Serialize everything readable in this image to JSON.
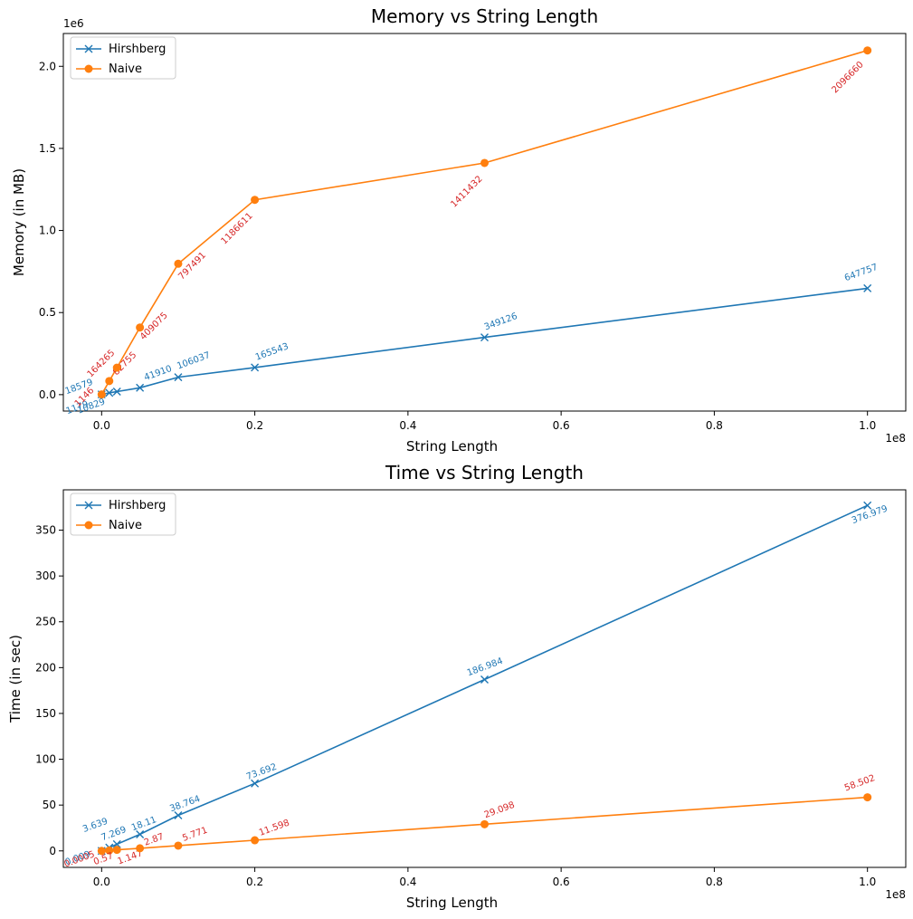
{
  "colors": {
    "hirshberg": "#1f77b4",
    "naive": "#ff7f0e",
    "annot_naive": "#d62728",
    "axis": "#000000",
    "legend_border": "#cccccc"
  },
  "chart_data": [
    {
      "type": "line",
      "title": "Memory vs String Length",
      "xlabel": "String Length",
      "ylabel": "Memory (in MB)",
      "x_offset_label": "1e8",
      "y_offset_label": "1e6",
      "xlim": [
        -5000000,
        105000000
      ],
      "ylim": [
        -100000,
        2200000
      ],
      "x_scale": 100000000,
      "y_scale": 1000000,
      "xticks": [
        0,
        20000000,
        40000000,
        60000000,
        80000000,
        100000000
      ],
      "xtick_labels": [
        "0.0",
        "0.2",
        "0.4",
        "0.6",
        "0.8",
        "1.0"
      ],
      "yticks": [
        0,
        500000,
        1000000,
        1500000,
        2000000
      ],
      "ytick_labels": [
        "0.0",
        "0.5",
        "1.0",
        "1.5",
        "2.0"
      ],
      "legend_position": "upper-left",
      "grid": false,
      "series": [
        {
          "name": "Hirshberg",
          "marker": "x",
          "x": [
            1000,
            1000000,
            2000000,
            5000000,
            10000000,
            20000000,
            50000000,
            100000000
          ],
          "values": [
            1179,
            10829,
            18579,
            41910,
            106037,
            165543,
            349126,
            647757
          ],
          "labels": [
            "1179",
            "10829",
            "18579",
            "41910",
            "106037",
            "165543",
            "349126",
            "647757"
          ]
        },
        {
          "name": "Naive",
          "marker": "o",
          "x": [
            1000,
            1000000,
            2000000,
            5000000,
            10000000,
            20000000,
            50000000,
            100000000
          ],
          "values": [
            1146,
            82755,
            164265,
            409075,
            797491,
            1186611,
            1411432,
            2096660
          ],
          "labels": [
            "1146",
            "82755",
            "164265",
            "409075",
            "797491",
            "1186611",
            "1411432",
            "2096660"
          ]
        }
      ]
    },
    {
      "type": "line",
      "title": "Time vs String Length",
      "xlabel": "String Length",
      "ylabel": "Time (in sec)",
      "x_offset_label": "1e8",
      "xlim": [
        -5000000,
        105000000
      ],
      "ylim": [
        -18,
        394
      ],
      "x_scale": 100000000,
      "xticks": [
        0,
        20000000,
        40000000,
        60000000,
        80000000,
        100000000
      ],
      "xtick_labels": [
        "0.0",
        "0.2",
        "0.4",
        "0.6",
        "0.8",
        "1.0"
      ],
      "yticks": [
        0,
        50,
        100,
        150,
        200,
        250,
        300,
        350
      ],
      "ytick_labels": [
        "0",
        "50",
        "100",
        "150",
        "200",
        "250",
        "300",
        "350"
      ],
      "legend_position": "upper-left",
      "grid": false,
      "series": [
        {
          "name": "Hirshberg",
          "marker": "x",
          "x": [
            1000,
            1000000,
            2000000,
            5000000,
            10000000,
            20000000,
            50000000,
            100000000
          ],
          "values": [
            0.009,
            3.639,
            7.269,
            18.11,
            38.764,
            73.692,
            186.984,
            376.979
          ],
          "labels": [
            "0.009",
            "3.639",
            "7.269",
            "18.11",
            "38.764",
            "73.692",
            "186.984",
            "376.979"
          ]
        },
        {
          "name": "Naive",
          "marker": "o",
          "x": [
            1000,
            1000000,
            2000000,
            5000000,
            10000000,
            20000000,
            50000000,
            100000000
          ],
          "values": [
            0.0005,
            0.57,
            1.147,
            2.87,
            5.771,
            11.598,
            29.098,
            58.502
          ],
          "labels": [
            "0.0005",
            "0.57",
            "1.147",
            "2.87",
            "5.771",
            "11.598",
            "29.098",
            "58.502"
          ]
        }
      ]
    }
  ]
}
